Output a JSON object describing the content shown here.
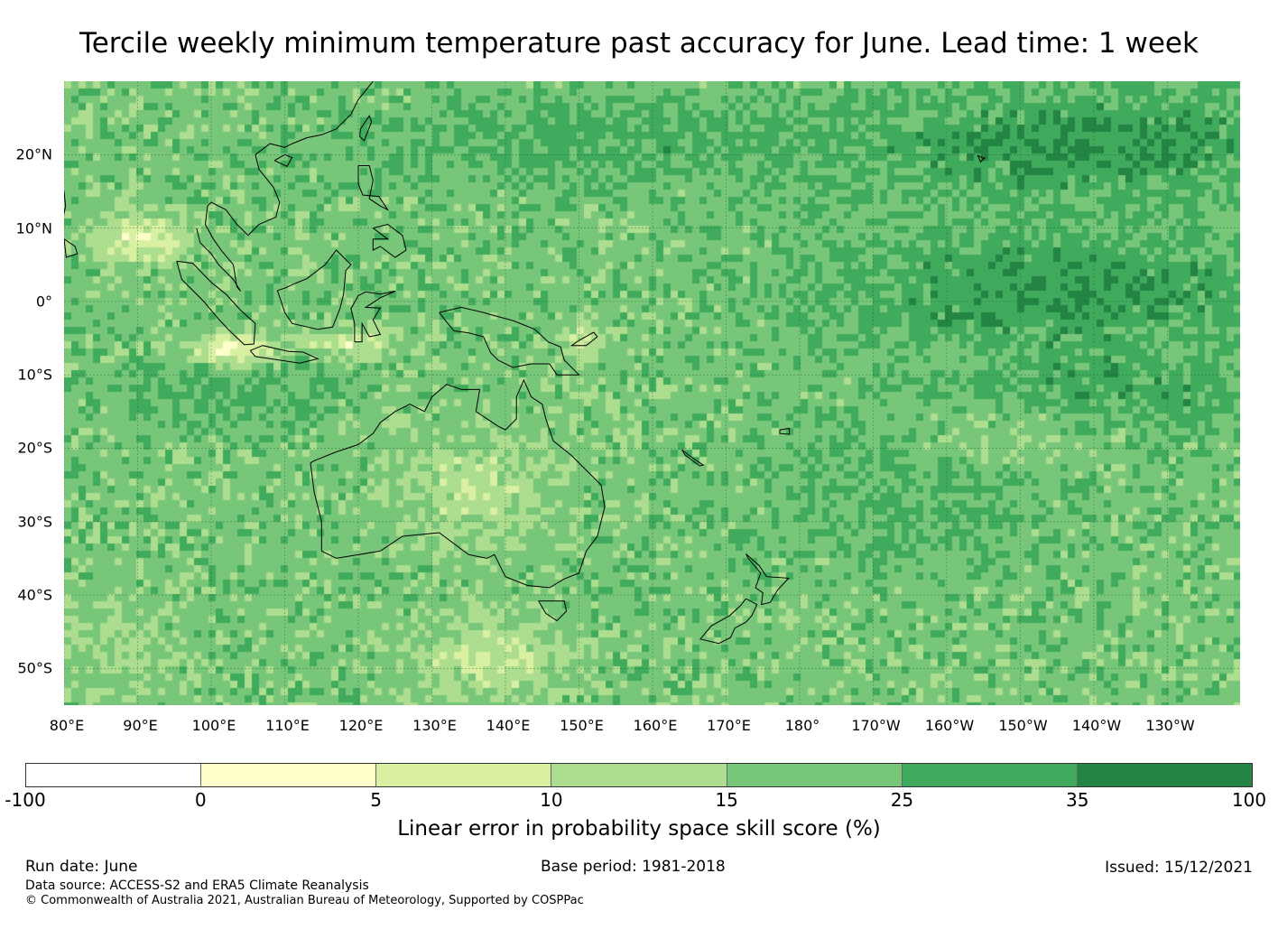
{
  "title": "Tercile weekly minimum temperature past accuracy for June. Lead time: 1 week",
  "map": {
    "lat_range": [
      -55,
      30
    ],
    "lon_range": [
      80,
      240
    ],
    "lat_ticks": [
      {
        "value": 20,
        "label": "20°N"
      },
      {
        "value": 10,
        "label": "10°N"
      },
      {
        "value": 0,
        "label": "0°"
      },
      {
        "value": -10,
        "label": "10°S"
      },
      {
        "value": -20,
        "label": "20°S"
      },
      {
        "value": -30,
        "label": "30°S"
      },
      {
        "value": -40,
        "label": "40°S"
      },
      {
        "value": -50,
        "label": "50°S"
      }
    ],
    "lon_ticks": [
      {
        "value": 80,
        "label": "80°E"
      },
      {
        "value": 90,
        "label": "90°E"
      },
      {
        "value": 100,
        "label": "100°E"
      },
      {
        "value": 110,
        "label": "110°E"
      },
      {
        "value": 120,
        "label": "120°E"
      },
      {
        "value": 130,
        "label": "130°E"
      },
      {
        "value": 140,
        "label": "140°E"
      },
      {
        "value": 150,
        "label": "150°E"
      },
      {
        "value": 160,
        "label": "160°E"
      },
      {
        "value": 170,
        "label": "170°E"
      },
      {
        "value": 180,
        "label": "180°"
      },
      {
        "value": 190,
        "label": "170°W"
      },
      {
        "value": 200,
        "label": "160°W"
      },
      {
        "value": 210,
        "label": "150°W"
      },
      {
        "value": 220,
        "label": "140°W"
      },
      {
        "value": 230,
        "label": "130°W"
      }
    ]
  },
  "colorbar": {
    "ticks": [
      "-100",
      "0",
      "5",
      "10",
      "15",
      "25",
      "35",
      "100"
    ],
    "colors": [
      "#ffffff",
      "#ffffcc",
      "#d9f0a3",
      "#addd8e",
      "#78c679",
      "#41ab5d",
      "#238443"
    ],
    "label": "Linear error in probability space skill score (%)"
  },
  "footer": {
    "run_date": "Run date: June",
    "base_period": "Base period: 1981-2018",
    "issued": "Issued: 15/12/2021",
    "data_source": "Data source: ACCESS-S2 and ERA5 Climate Reanalysis",
    "copyright": "© Commonwealth of Australia 2021, Australian Bureau of Meteorology, Supported by COSPPac"
  }
}
